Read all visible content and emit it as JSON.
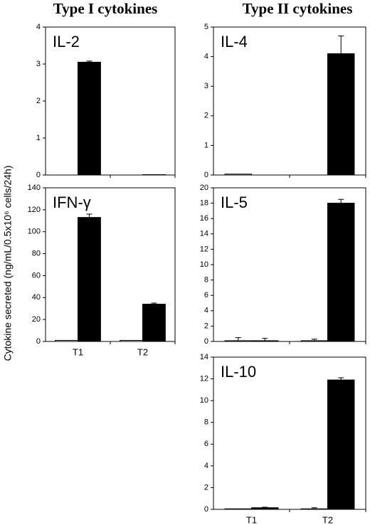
{
  "headers": [
    "Type I cytokines",
    "Type II cytokines"
  ],
  "y_label": "Cytokine secreted (ng/mL/0.5x10⁶ cells/24h)",
  "chart_data": [
    {
      "type": "bar",
      "title": "IL-2",
      "categories": [
        null,
        null
      ],
      "series": [
        {
          "color": "#ffffff",
          "values": [
            0,
            0
          ],
          "errors": [
            0,
            0
          ]
        },
        {
          "color": "#000000",
          "values": [
            3.05,
            0.01
          ],
          "errors": [
            0.03,
            0
          ]
        }
      ],
      "ylim": [
        0,
        4
      ],
      "yticks": [
        0,
        1,
        2,
        3,
        4
      ]
    },
    {
      "type": "bar",
      "title": "IFN-γ",
      "categories": [
        "T1",
        "T2"
      ],
      "series": [
        {
          "color": "#ffffff",
          "values": [
            1,
            1
          ],
          "errors": [
            0,
            0
          ]
        },
        {
          "color": "#000000",
          "values": [
            113,
            34
          ],
          "errors": [
            3,
            1
          ]
        }
      ],
      "ylim": [
        0,
        140
      ],
      "yticks": [
        0,
        20,
        40,
        60,
        80,
        100,
        120,
        140
      ]
    },
    {
      "type": "bar",
      "title": "IL-4",
      "categories": [
        null,
        null
      ],
      "series": [
        {
          "color": "#ffffff",
          "values": [
            0.03,
            0
          ],
          "errors": [
            0,
            0
          ]
        },
        {
          "color": "#000000",
          "values": [
            0,
            4.1
          ],
          "errors": [
            0,
            0.6
          ]
        }
      ],
      "ylim": [
        0,
        5
      ],
      "yticks": [
        0,
        1,
        2,
        3,
        4,
        5
      ]
    },
    {
      "type": "bar",
      "title": "IL-5",
      "categories": [
        null,
        null
      ],
      "series": [
        {
          "color": "#ffffff",
          "values": [
            0.1,
            0.1
          ],
          "errors": [
            0.4,
            0.2
          ]
        },
        {
          "color": "#000000",
          "values": [
            0.1,
            18
          ],
          "errors": [
            0.3,
            0.5
          ]
        }
      ],
      "ylim": [
        0,
        20
      ],
      "yticks": [
        0,
        2,
        4,
        6,
        8,
        10,
        12,
        14,
        16,
        18,
        20
      ]
    },
    {
      "type": "bar",
      "title": "IL-10",
      "categories": [
        "T1",
        "T2"
      ],
      "series": [
        {
          "color": "#ffffff",
          "values": [
            0.05,
            0.05
          ],
          "errors": [
            0,
            0.1
          ]
        },
        {
          "color": "#000000",
          "values": [
            0.15,
            11.9
          ],
          "errors": [
            0.05,
            0.2
          ]
        }
      ],
      "ylim": [
        0,
        14
      ],
      "yticks": [
        0,
        2,
        4,
        6,
        8,
        10,
        12,
        14
      ]
    }
  ]
}
